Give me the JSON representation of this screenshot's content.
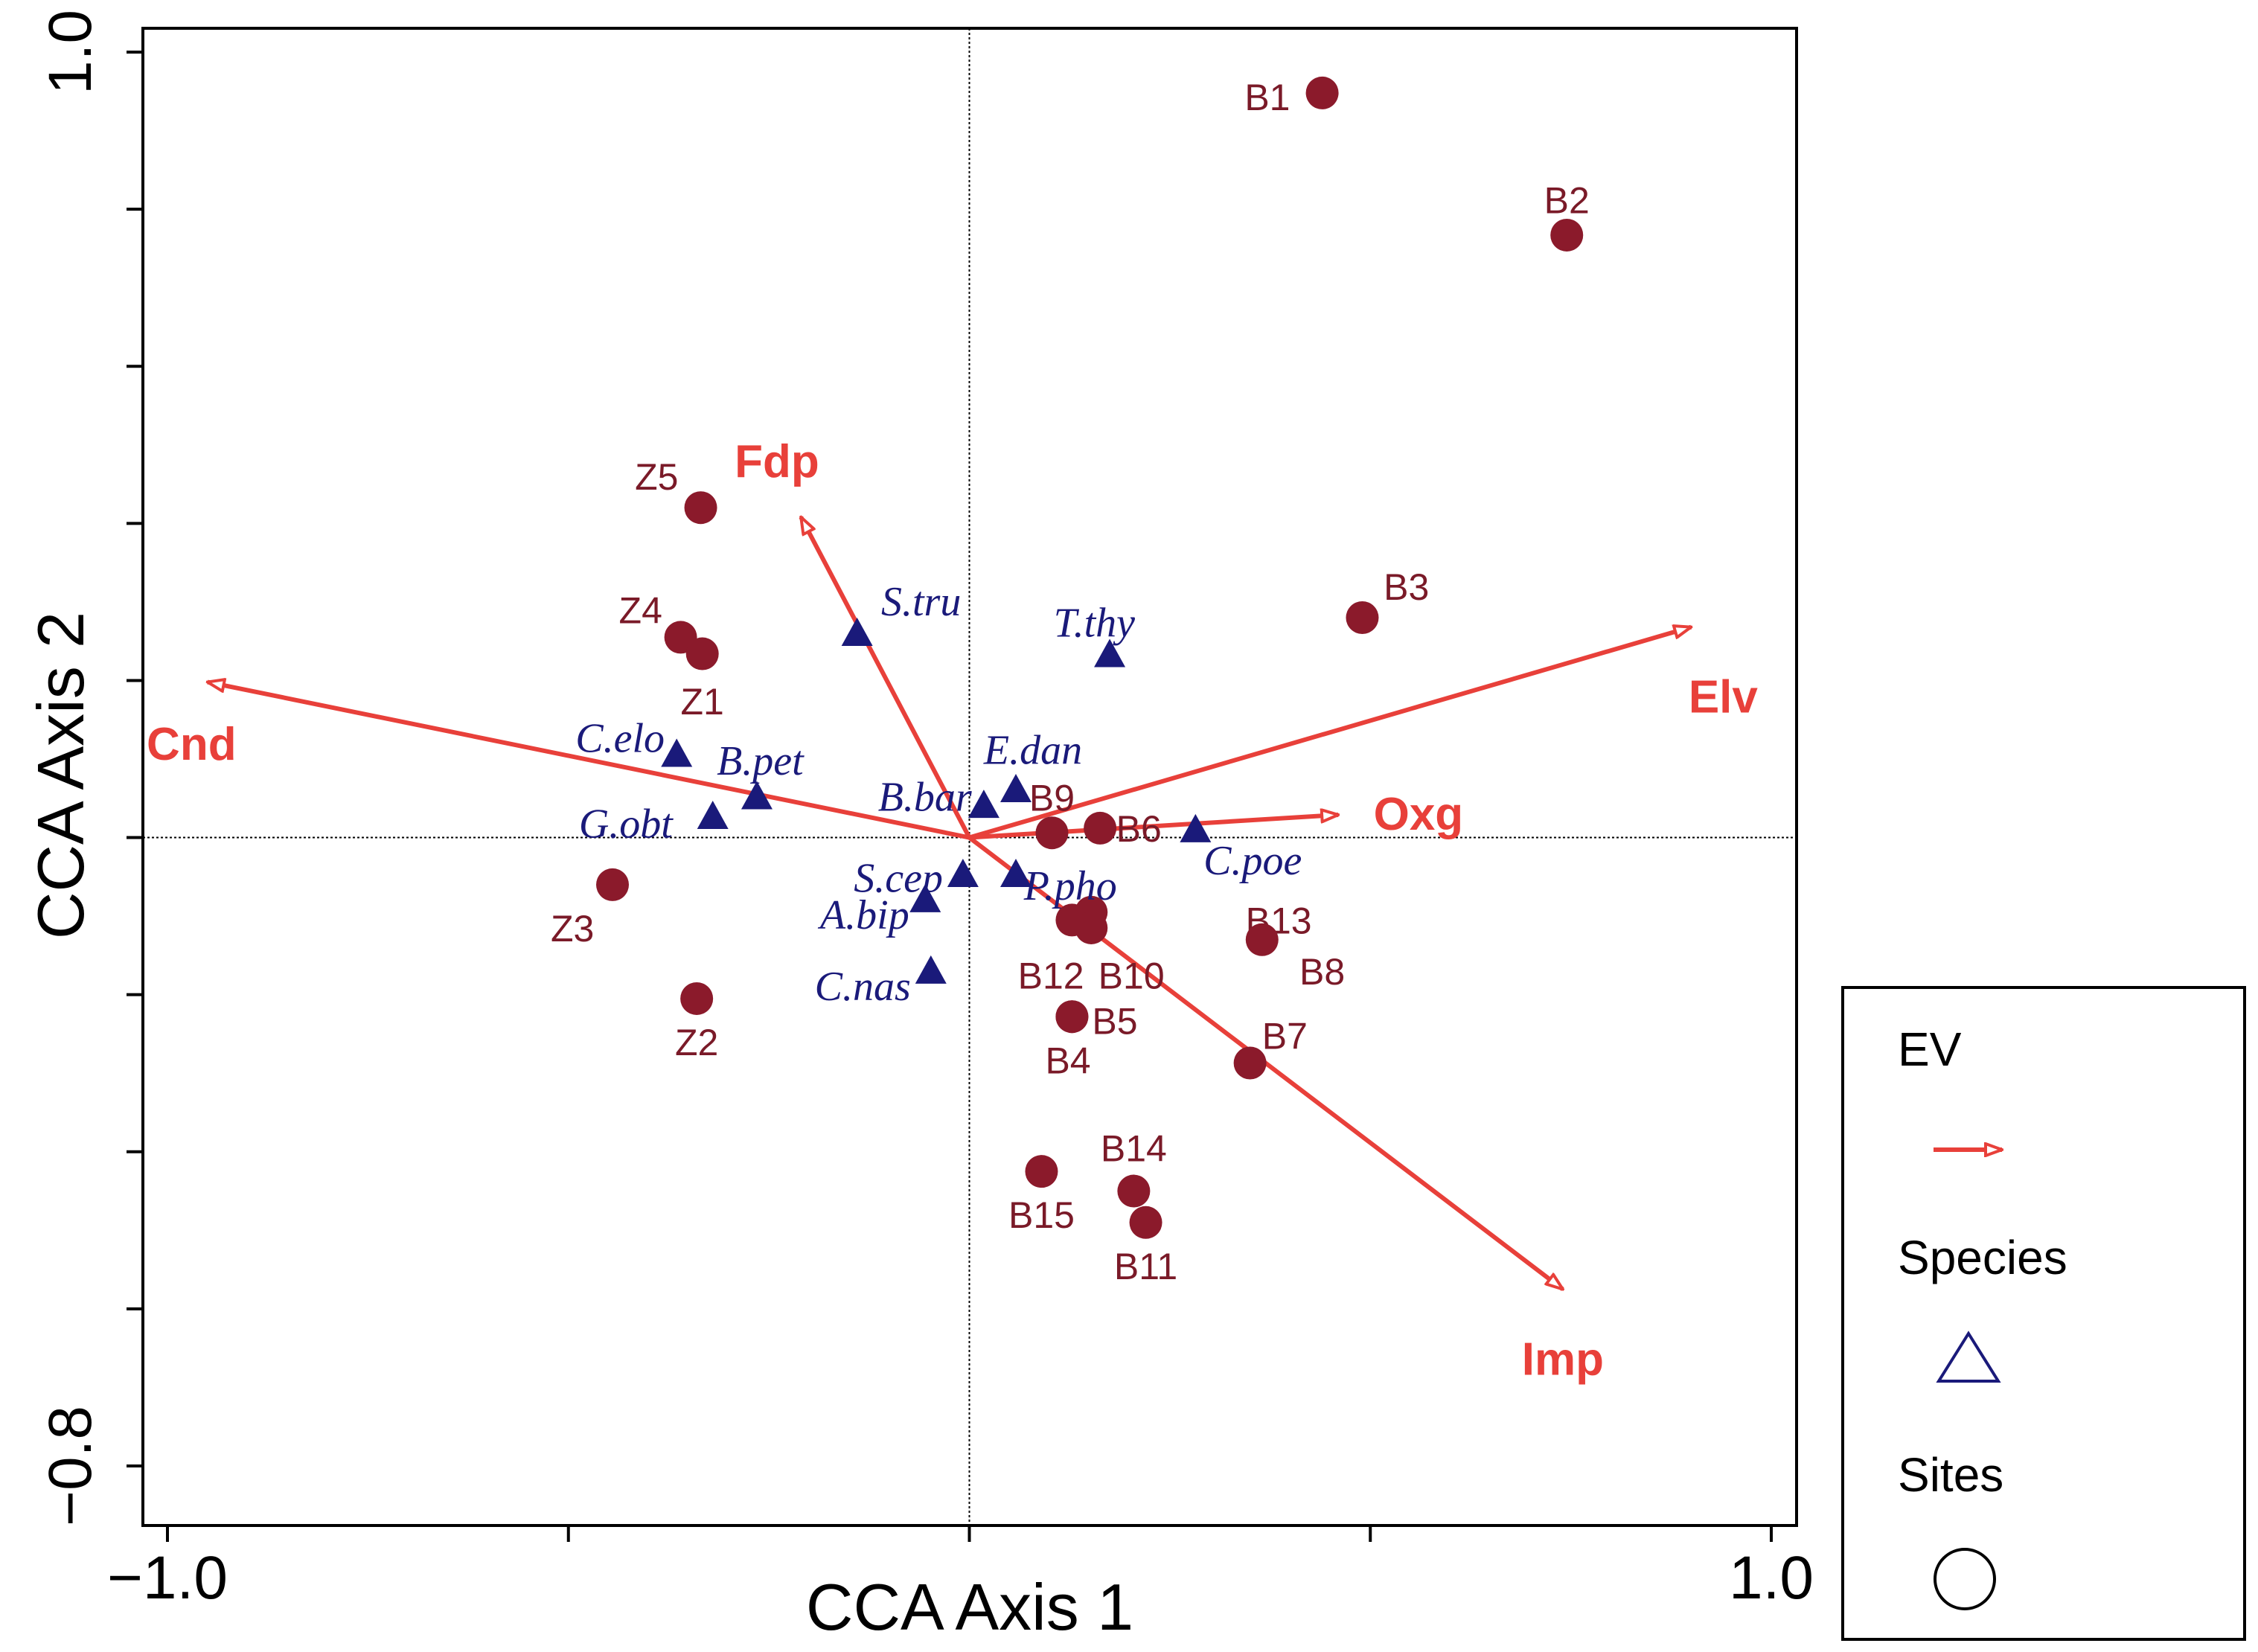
{
  "chart_data": {
    "type": "scatter",
    "subtype": "CCA biplot",
    "xlabel": "CCA Axis 1",
    "ylabel": "CCA Axis 2",
    "xlim": [
      -1.03,
      1.03
    ],
    "ylim": [
      -0.84,
      1.0
    ],
    "x_ticks": [
      -1.0,
      -0.5,
      0.0,
      0.5,
      1.0
    ],
    "x_tick_labels": [
      "−1.0",
      "",
      "",
      "",
      "1.0"
    ],
    "y_ticks": [
      1.0,
      0.8,
      0.6,
      0.4,
      0.2,
      0.0,
      -0.2,
      -0.4,
      -0.6,
      -0.8
    ],
    "y_tick_labels": [
      "1.0",
      "",
      "",
      "",
      "",
      "",
      "",
      "",
      "",
      "−0.8"
    ],
    "colors": {
      "sites": "#8b1a2b",
      "species": "#1a1a7a",
      "ev": "#e8403a",
      "site_label": "#7a1a28",
      "species_label": "#1a1a7a"
    },
    "environmental_variables": [
      {
        "name": "Cnd",
        "x": -0.95,
        "y": 0.198,
        "label_dx": -0.02,
        "label_dy": -0.08
      },
      {
        "name": "Fdp",
        "x": -0.21,
        "y": 0.408,
        "label_dx": -0.03,
        "label_dy": 0.07
      },
      {
        "name": "Elv",
        "x": 0.9,
        "y": 0.268,
        "label_dx": 0.04,
        "label_dy": -0.09
      },
      {
        "name": "Oxg",
        "x": 0.46,
        "y": 0.029,
        "label_dx": 0.1,
        "label_dy": 0.0
      },
      {
        "name": "Imp",
        "x": 0.74,
        "y": -0.575,
        "label_dx": 0.0,
        "label_dy": -0.09
      }
    ],
    "species": [
      {
        "name": "S.tru",
        "x": -0.14,
        "y": 0.262,
        "label_dx": 0.03,
        "label_dy": 0.04,
        "anchor": "start"
      },
      {
        "name": "T.thy",
        "x": 0.175,
        "y": 0.235,
        "label_dx": -0.07,
        "label_dy": 0.04,
        "anchor": "start"
      },
      {
        "name": "C.elo",
        "x": -0.365,
        "y": 0.108,
        "label_dx": -0.015,
        "label_dy": 0.02,
        "anchor": "end"
      },
      {
        "name": "B.pet",
        "x": -0.265,
        "y": 0.054,
        "label_dx": -0.05,
        "label_dy": 0.045,
        "anchor": "start"
      },
      {
        "name": "G.obt",
        "x": -0.32,
        "y": 0.029,
        "label_dx": -0.05,
        "label_dy": -0.01,
        "anchor": "end"
      },
      {
        "name": "E.dan",
        "x": 0.058,
        "y": 0.063,
        "label_dx": -0.04,
        "label_dy": 0.05,
        "anchor": "start"
      },
      {
        "name": "B.bar",
        "x": 0.018,
        "y": 0.043,
        "label_dx": -0.015,
        "label_dy": 0.01,
        "anchor": "end"
      },
      {
        "name": "C.poe",
        "x": 0.282,
        "y": 0.012,
        "label_dx": 0.01,
        "label_dy": -0.04,
        "anchor": "start"
      },
      {
        "name": "S.cep",
        "x": -0.008,
        "y": -0.045,
        "label_dx": -0.025,
        "label_dy": -0.005,
        "anchor": "end"
      },
      {
        "name": "P.pho",
        "x": 0.058,
        "y": -0.045,
        "label_dx": 0.01,
        "label_dy": -0.015,
        "anchor": "start"
      },
      {
        "name": "A.bip",
        "x": -0.055,
        "y": -0.077,
        "label_dx": -0.02,
        "label_dy": -0.02,
        "anchor": "end"
      },
      {
        "name": "C.nas",
        "x": -0.048,
        "y": -0.168,
        "label_dx": -0.025,
        "label_dy": -0.02,
        "anchor": "end"
      }
    ],
    "sites": [
      {
        "name": "B1",
        "x": 0.44,
        "y": 0.948,
        "label_dx": -0.04,
        "label_dy": -0.005,
        "anchor": "end"
      },
      {
        "name": "B2",
        "x": 0.745,
        "y": 0.767,
        "label_dx": 0.0,
        "label_dy": 0.045,
        "anchor": "middle"
      },
      {
        "name": "B3",
        "x": 0.49,
        "y": 0.28,
        "label_dx": 0.055,
        "label_dy": 0.04,
        "anchor": "middle"
      },
      {
        "name": "B9",
        "x": 0.103,
        "y": 0.006,
        "label_dx": 0.0,
        "label_dy": 0.045,
        "anchor": "middle"
      },
      {
        "name": "B6",
        "x": 0.163,
        "y": 0.012,
        "label_dx": 0.02,
        "label_dy": 0.0,
        "anchor": "start"
      },
      {
        "name": "B13",
        "x": 0.152,
        "y": -0.095,
        "label_dx": 0.275,
        "label_dy": -0.01,
        "anchor": "end"
      },
      {
        "name": "B12",
        "x": 0.128,
        "y": -0.105,
        "label_dx": 0.015,
        "label_dy": -0.07,
        "anchor": "end"
      },
      {
        "name": "B10",
        "x": 0.152,
        "y": -0.115,
        "label_dx": 0.05,
        "label_dy": -0.06,
        "anchor": "middle"
      },
      {
        "name": "B8",
        "x": 0.365,
        "y": -0.13,
        "label_dx": 0.075,
        "label_dy": -0.04,
        "anchor": "middle"
      },
      {
        "name": "B5",
        "x": 0.128,
        "y": -0.228,
        "label_dx": 0.025,
        "label_dy": -0.005,
        "anchor": "start"
      },
      {
        "name": "B4",
        "x": 0.128,
        "y": -0.228,
        "label_dx": -0.005,
        "label_dy": -0.055,
        "anchor": "middle"
      },
      {
        "name": "B7",
        "x": 0.35,
        "y": -0.287,
        "label_dx": 0.015,
        "label_dy": 0.035,
        "anchor": "start"
      },
      {
        "name": "B14",
        "x": 0.205,
        "y": -0.45,
        "label_dx": 0.0,
        "label_dy": 0.055,
        "anchor": "middle"
      },
      {
        "name": "B15",
        "x": 0.09,
        "y": -0.425,
        "label_dx": 0.0,
        "label_dy": -0.055,
        "anchor": "middle"
      },
      {
        "name": "B11",
        "x": 0.22,
        "y": -0.49,
        "label_dx": 0.0,
        "label_dy": -0.055,
        "anchor": "middle"
      },
      {
        "name": "Z5",
        "x": -0.335,
        "y": 0.42,
        "label_dx": -0.055,
        "label_dy": 0.04,
        "anchor": "middle"
      },
      {
        "name": "Z4",
        "x": -0.36,
        "y": 0.255,
        "label_dx": -0.05,
        "label_dy": 0.035,
        "anchor": "middle"
      },
      {
        "name": "Z1",
        "x": -0.333,
        "y": 0.234,
        "label_dx": 0.0,
        "label_dy": -0.06,
        "anchor": "middle"
      },
      {
        "name": "Z3",
        "x": -0.445,
        "y": -0.06,
        "label_dx": -0.05,
        "label_dy": -0.055,
        "anchor": "middle"
      },
      {
        "name": "Z2",
        "x": -0.34,
        "y": -0.205,
        "label_dx": 0.0,
        "label_dy": -0.055,
        "anchor": "middle"
      }
    ],
    "legend": {
      "placement": "bottom-right",
      "entries": [
        {
          "label": "EV",
          "symbol": "arrow"
        },
        {
          "label": "Species",
          "symbol": "triangle"
        },
        {
          "label": "Sites",
          "symbol": "circle"
        }
      ]
    }
  }
}
